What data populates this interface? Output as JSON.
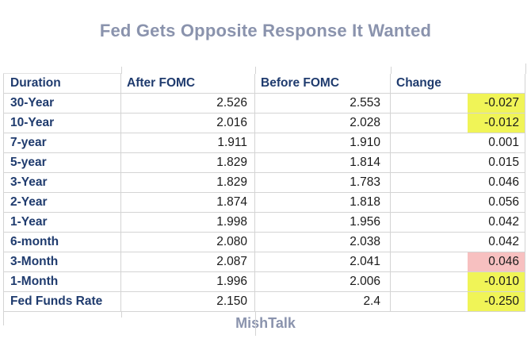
{
  "title": "Fed Gets Opposite Response It Wanted",
  "footer": "MishTalk",
  "table": {
    "headers": [
      "Duration",
      "After FOMC",
      "Before FOMC",
      "Change"
    ],
    "rows": [
      {
        "duration": "30-Year",
        "after": "2.526",
        "before": "2.553",
        "change": "-0.027",
        "highlight": "yellow"
      },
      {
        "duration": "10-Year",
        "after": "2.016",
        "before": "2.028",
        "change": "-0.012",
        "highlight": "yellow"
      },
      {
        "duration": "7-year",
        "after": "1.911",
        "before": "1.910",
        "change": "0.001",
        "highlight": "none"
      },
      {
        "duration": "5-year",
        "after": "1.829",
        "before": "1.814",
        "change": "0.015",
        "highlight": "none"
      },
      {
        "duration": "3-Year",
        "after": "1.829",
        "before": "1.783",
        "change": "0.046",
        "highlight": "none"
      },
      {
        "duration": "2-Year",
        "after": "1.874",
        "before": "1.818",
        "change": "0.056",
        "highlight": "none"
      },
      {
        "duration": "1-Year",
        "after": "1.998",
        "before": "1.956",
        "change": "0.042",
        "highlight": "none"
      },
      {
        "duration": "6-month",
        "after": "2.080",
        "before": "2.038",
        "change": "0.042",
        "highlight": "none"
      },
      {
        "duration": "3-Month",
        "after": "2.087",
        "before": "2.041",
        "change": "0.046",
        "highlight": "pink"
      },
      {
        "duration": "1-Month",
        "after": "1.996",
        "before": "2.006",
        "change": "-0.010",
        "highlight": "yellow"
      },
      {
        "duration": "Fed Funds Rate",
        "after": "2.150",
        "before": "2.4",
        "change": "-0.250",
        "highlight": "yellow"
      }
    ]
  },
  "colors": {
    "title_text": "#8A93AD",
    "header_text": "#1F3B6E",
    "value_text": "#1A1A1A",
    "gridline": "#D4D4D4",
    "highlight_yellow": "#F0F457",
    "highlight_pink": "#F7C0C0"
  },
  "chart_data": {
    "type": "table",
    "title": "Fed Gets Opposite Response It Wanted",
    "source": "MishTalk",
    "columns": [
      "Duration",
      "After FOMC",
      "Before FOMC",
      "Change"
    ],
    "rows": [
      [
        "30-Year",
        2.526,
        2.553,
        -0.027
      ],
      [
        "10-Year",
        2.016,
        2.028,
        -0.012
      ],
      [
        "7-year",
        1.911,
        1.91,
        0.001
      ],
      [
        "5-year",
        1.829,
        1.814,
        0.015
      ],
      [
        "3-Year",
        1.829,
        1.783,
        0.046
      ],
      [
        "2-Year",
        1.874,
        1.818,
        0.056
      ],
      [
        "1-Year",
        1.998,
        1.956,
        0.042
      ],
      [
        "6-month",
        2.08,
        2.038,
        0.042
      ],
      [
        "3-Month",
        2.087,
        2.041,
        0.046
      ],
      [
        "1-Month",
        1.996,
        2.006,
        -0.01
      ],
      [
        "Fed Funds Rate",
        2.15,
        2.4,
        -0.25
      ]
    ],
    "highlighted_cells": {
      "yellow_change": [
        "30-Year",
        "10-Year",
        "1-Month",
        "Fed Funds Rate"
      ],
      "pink_change": [
        "3-Month"
      ]
    },
    "layout": {
      "grid": true,
      "change_values_right_aligned": true
    }
  }
}
